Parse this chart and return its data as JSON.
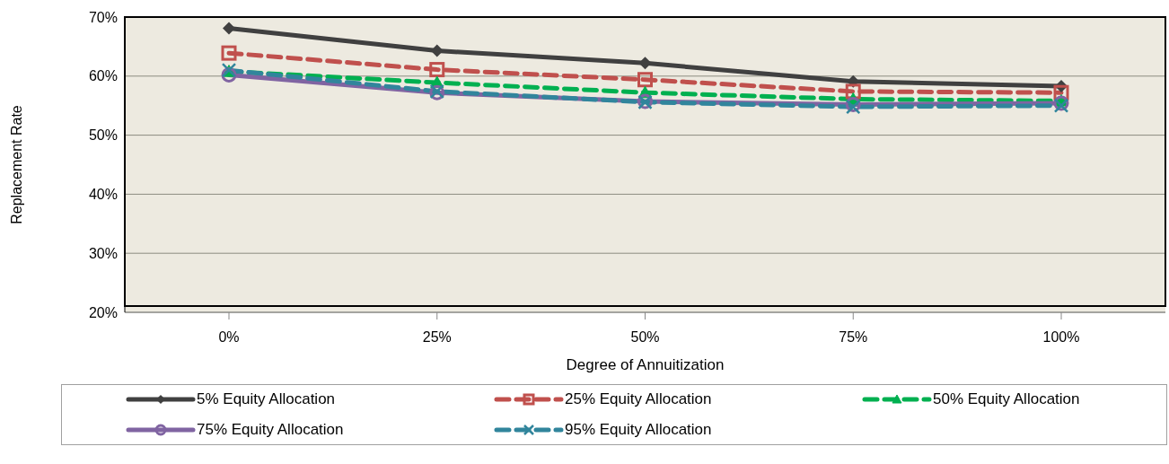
{
  "chart_data": {
    "type": "line",
    "xlabel": "Degree of Annuitization",
    "ylabel": "Replacement Rate",
    "categories": [
      "0%",
      "25%",
      "50%",
      "75%",
      "100%"
    ],
    "series": [
      {
        "name": "5% Equity Allocation",
        "color": "#404040",
        "marker": "diamond",
        "line_style": "solid",
        "values": [
          68.1,
          64.3,
          62.2,
          59.1,
          58.3
        ]
      },
      {
        "name": "25% Equity Allocation",
        "color": "#c0504d",
        "marker": "square",
        "line_style": "dashed",
        "values": [
          63.9,
          61.1,
          59.4,
          57.4,
          57.2
        ]
      },
      {
        "name": "50% Equity Allocation",
        "color": "#00b050",
        "marker": "triangle",
        "line_style": "dashed",
        "values": [
          60.8,
          58.9,
          57.2,
          56.1,
          55.8
        ]
      },
      {
        "name": "75% Equity Allocation",
        "color": "#8064a2",
        "marker": "circle",
        "line_style": "solid",
        "values": [
          60.2,
          57.2,
          55.7,
          55.2,
          55.4
        ]
      },
      {
        "name": "95% Equity Allocation",
        "color": "#31859c",
        "marker": "cross",
        "line_style": "dashed",
        "values": [
          61.0,
          57.4,
          55.6,
          54.8,
          55.0
        ]
      }
    ],
    "ylim": [
      20,
      70
    ],
    "yticks": [
      {
        "value": 20,
        "label": "20%"
      },
      {
        "value": 30,
        "label": "30%"
      },
      {
        "value": 40,
        "label": "40%"
      },
      {
        "value": 50,
        "label": "50%"
      },
      {
        "value": 60,
        "label": "60%"
      },
      {
        "value": 70,
        "label": "70%"
      }
    ],
    "grid": "y",
    "legend": "bottom"
  }
}
